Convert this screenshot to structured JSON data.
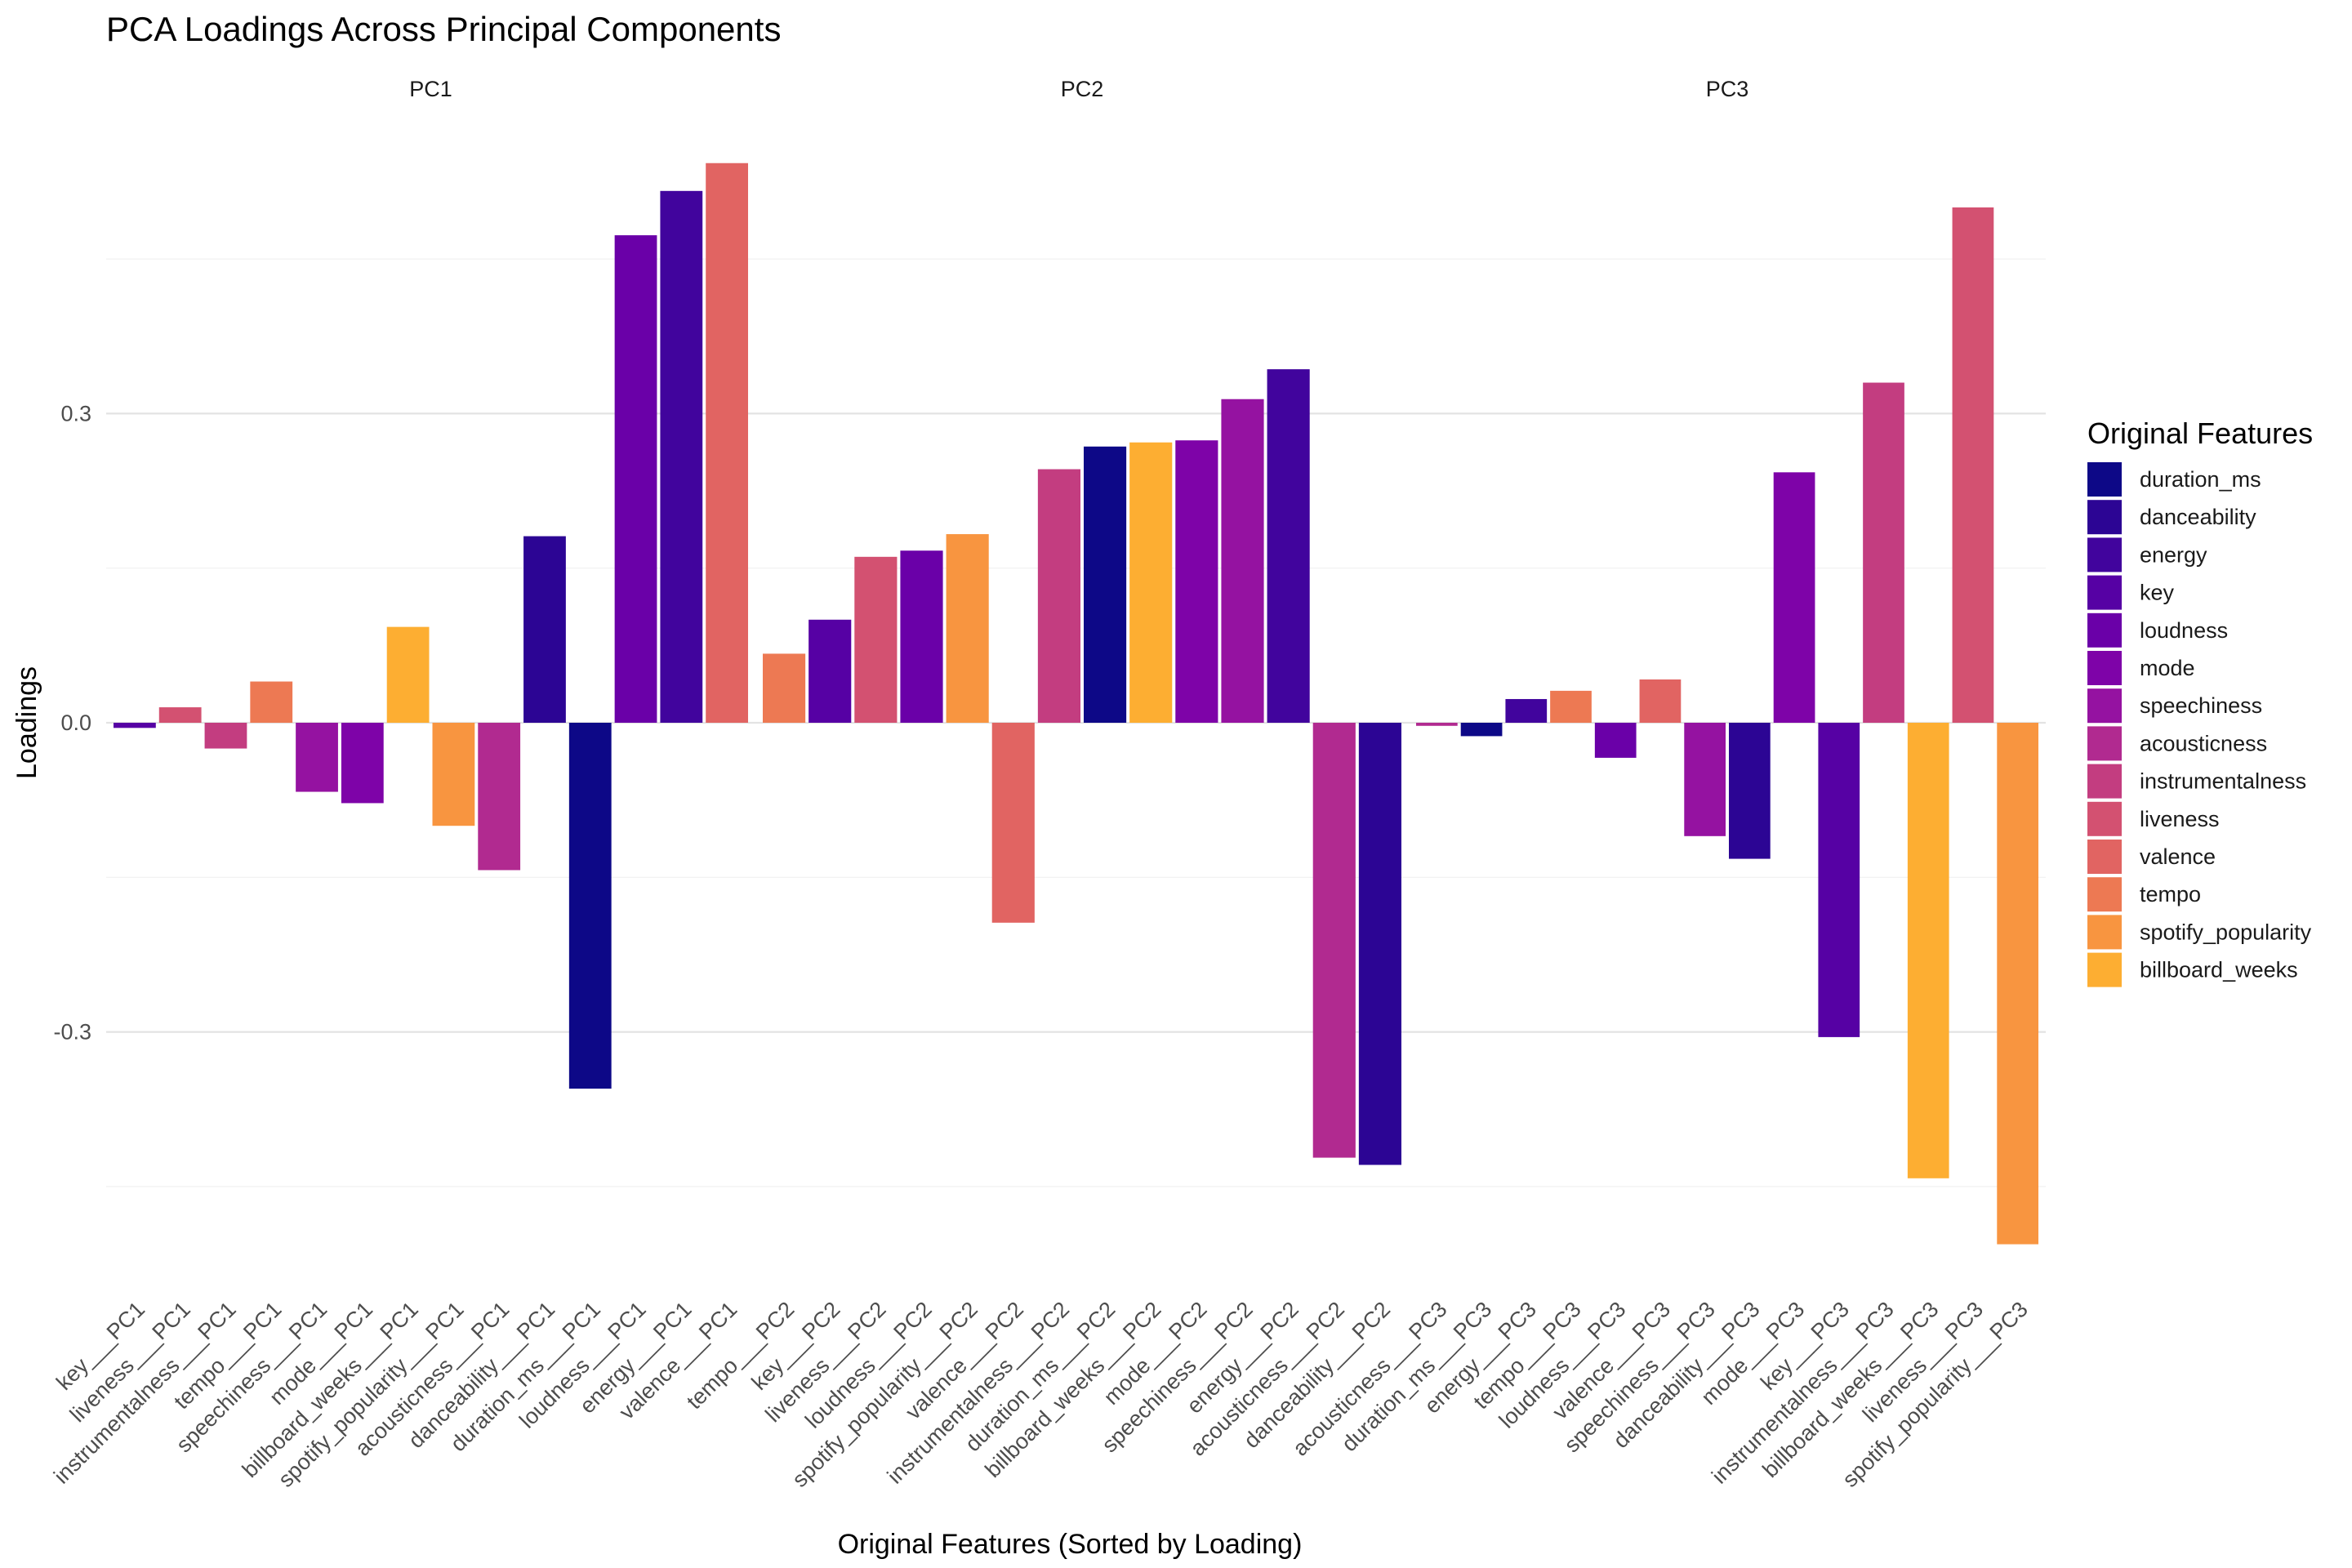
{
  "chart_data": {
    "type": "bar",
    "title": "PCA Loadings Across Principal Components",
    "xlabel": "Original Features (Sorted by Loading)",
    "ylabel": "Loadings",
    "ylim": [
      -0.545,
      0.545
    ],
    "yticks": [
      -0.3,
      0.0,
      0.3
    ],
    "ytick_labels": [
      "-0.3",
      "0.0",
      "0.3"
    ],
    "grid": true,
    "legend": {
      "title": "Original Features",
      "position": "right",
      "entries": [
        "duration_ms",
        "danceability",
        "energy",
        "key",
        "loudness",
        "mode",
        "speechiness",
        "acousticness",
        "instrumentalness",
        "liveness",
        "valence",
        "tempo",
        "spotify_popularity",
        "billboard_weeks"
      ]
    },
    "colors": {
      "duration_ms": "#0d0887",
      "danceability": "#2c0594",
      "energy": "#41049d",
      "key": "#5601a4",
      "loudness": "#6a00a8",
      "mode": "#7e03a8",
      "speechiness": "#9512a1",
      "acousticness": "#b12a90",
      "instrumentalness": "#c33d80",
      "liveness": "#d35171",
      "valence": "#e16462",
      "tempo": "#ed7953",
      "spotify_popularity": "#f89540",
      "billboard_weeks": "#fdae32"
    },
    "facets": [
      {
        "name": "PC1",
        "bars": [
          {
            "label": "key___PC1",
            "feature": "key",
            "value": -0.005
          },
          {
            "label": "liveness___PC1",
            "feature": "liveness",
            "value": 0.015
          },
          {
            "label": "instrumentalness___PC1",
            "feature": "instrumentalness",
            "value": -0.025
          },
          {
            "label": "tempo___PC1",
            "feature": "tempo",
            "value": 0.04
          },
          {
            "label": "speechiness___PC1",
            "feature": "speechiness",
            "value": -0.067
          },
          {
            "label": "mode___PC1",
            "feature": "mode",
            "value": -0.078
          },
          {
            "label": "billboard_weeks___PC1",
            "feature": "billboard_weeks",
            "value": 0.093
          },
          {
            "label": "spotify_popularity___PC1",
            "feature": "spotify_popularity",
            "value": -0.1
          },
          {
            "label": "acousticness___PC1",
            "feature": "acousticness",
            "value": -0.143
          },
          {
            "label": "danceability___PC1",
            "feature": "danceability",
            "value": 0.181
          },
          {
            "label": "duration_ms___PC1",
            "feature": "duration_ms",
            "value": -0.355
          },
          {
            "label": "loudness___PC1",
            "feature": "loudness",
            "value": 0.473
          },
          {
            "label": "energy___PC1",
            "feature": "energy",
            "value": 0.516
          },
          {
            "label": "valence___PC1",
            "feature": "valence",
            "value": 0.543
          }
        ]
      },
      {
        "name": "PC2",
        "bars": [
          {
            "label": "tempo___PC2",
            "feature": "tempo",
            "value": 0.067
          },
          {
            "label": "key___PC2",
            "feature": "key",
            "value": 0.1
          },
          {
            "label": "liveness___PC2",
            "feature": "liveness",
            "value": 0.161
          },
          {
            "label": "loudness___PC2",
            "feature": "loudness",
            "value": 0.167
          },
          {
            "label": "spotify_popularity___PC2",
            "feature": "spotify_popularity",
            "value": 0.183
          },
          {
            "label": "valence___PC2",
            "feature": "valence",
            "value": -0.194
          },
          {
            "label": "instrumentalness___PC2",
            "feature": "instrumentalness",
            "value": 0.246
          },
          {
            "label": "duration_ms___PC2",
            "feature": "duration_ms",
            "value": 0.268
          },
          {
            "label": "billboard_weeks___PC2",
            "feature": "billboard_weeks",
            "value": 0.272
          },
          {
            "label": "mode___PC2",
            "feature": "mode",
            "value": 0.274
          },
          {
            "label": "speechiness___PC2",
            "feature": "speechiness",
            "value": 0.314
          },
          {
            "label": "energy___PC2",
            "feature": "energy",
            "value": 0.343
          },
          {
            "label": "acousticness___PC2",
            "feature": "acousticness",
            "value": -0.422
          },
          {
            "label": "danceability___PC2",
            "feature": "danceability",
            "value": -0.429
          }
        ]
      },
      {
        "name": "PC3",
        "bars": [
          {
            "label": "acousticness___PC3",
            "feature": "acousticness",
            "value": -0.003
          },
          {
            "label": "duration_ms___PC3",
            "feature": "duration_ms",
            "value": -0.013
          },
          {
            "label": "energy___PC3",
            "feature": "energy",
            "value": 0.023
          },
          {
            "label": "tempo___PC3",
            "feature": "tempo",
            "value": 0.031
          },
          {
            "label": "loudness___PC3",
            "feature": "loudness",
            "value": -0.034
          },
          {
            "label": "valence___PC3",
            "feature": "valence",
            "value": 0.042
          },
          {
            "label": "speechiness___PC3",
            "feature": "speechiness",
            "value": -0.11
          },
          {
            "label": "danceability___PC3",
            "feature": "danceability",
            "value": -0.132
          },
          {
            "label": "mode___PC3",
            "feature": "mode",
            "value": 0.243
          },
          {
            "label": "key___PC3",
            "feature": "key",
            "value": -0.305
          },
          {
            "label": "instrumentalness___PC3",
            "feature": "instrumentalness",
            "value": 0.33
          },
          {
            "label": "billboard_weeks___PC3",
            "feature": "billboard_weeks",
            "value": -0.442
          },
          {
            "label": "liveness___PC3",
            "feature": "liveness",
            "value": 0.5
          },
          {
            "label": "spotify_popularity___PC3",
            "feature": "spotify_popularity",
            "value": -0.506
          }
        ]
      }
    ]
  }
}
